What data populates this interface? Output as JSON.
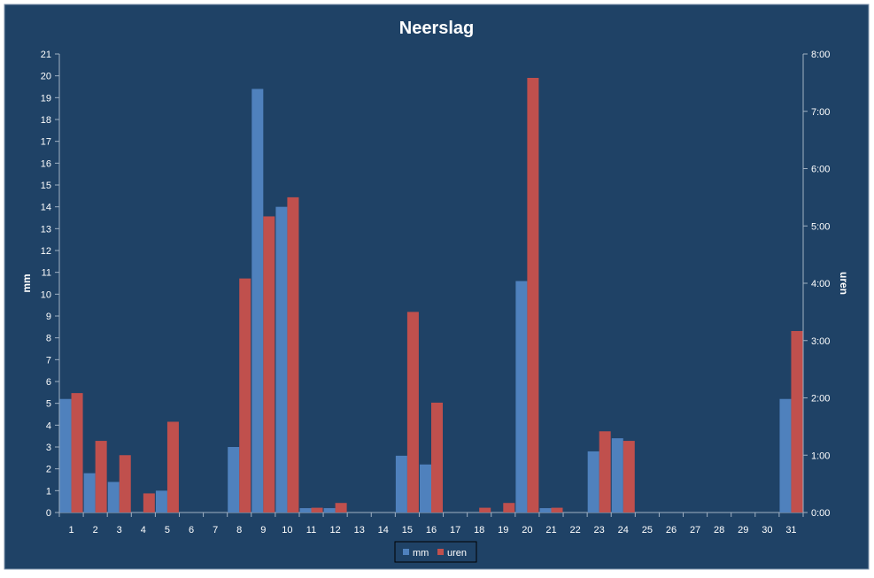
{
  "chart_data": {
    "type": "bar",
    "title": "Neerslag",
    "ylabel": "mm",
    "y2label": "uren",
    "ylim": [
      0,
      21
    ],
    "y2lim_minutes": [
      0,
      480
    ],
    "y2_ticks": [
      "0:00",
      "1:00",
      "2:00",
      "3:00",
      "4:00",
      "5:00",
      "6:00",
      "7:00",
      "8:00"
    ],
    "categories": [
      "1",
      "2",
      "3",
      "4",
      "5",
      "6",
      "7",
      "8",
      "9",
      "10",
      "11",
      "12",
      "13",
      "14",
      "15",
      "16",
      "17",
      "18",
      "19",
      "20",
      "21",
      "22",
      "23",
      "24",
      "25",
      "26",
      "27",
      "28",
      "29",
      "30",
      "31"
    ],
    "series": [
      {
        "name": "mm",
        "axis": "left",
        "color": "#4F81BD",
        "values": [
          5.2,
          1.8,
          1.4,
          0,
          1.0,
          0,
          0,
          3.0,
          19.4,
          14.0,
          0.2,
          0.2,
          0,
          0,
          2.6,
          2.2,
          0,
          0,
          0,
          10.6,
          0.2,
          0,
          2.8,
          3.4,
          0,
          0,
          0,
          0,
          0,
          0,
          5.2
        ]
      },
      {
        "name": "uren",
        "axis": "right",
        "color": "#C0504D",
        "values_minutes": [
          125,
          75,
          60,
          20,
          95,
          0,
          0,
          245,
          310,
          330,
          5,
          10,
          0,
          0,
          210,
          115,
          0,
          5,
          10,
          455,
          5,
          0,
          85,
          75,
          0,
          0,
          0,
          0,
          0,
          0,
          190
        ]
      }
    ],
    "legend_position": "bottom",
    "grid": false,
    "colors": {
      "background": "#1F4266",
      "border": "#8096AE",
      "axis": "#A0B1C3"
    }
  }
}
